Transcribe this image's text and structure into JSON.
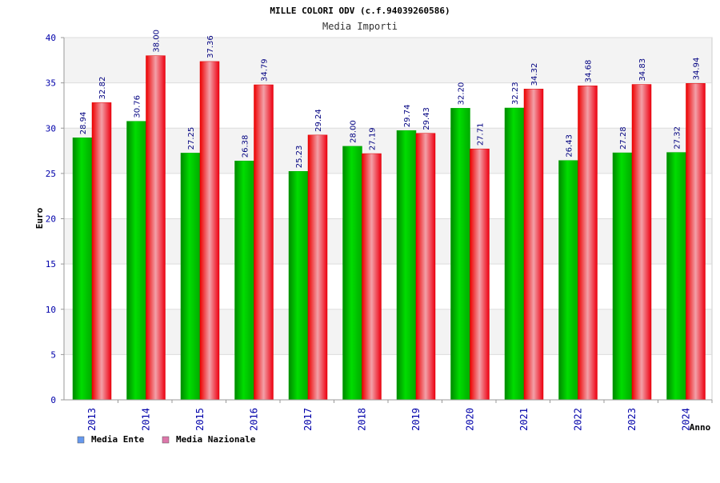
{
  "chart_data": {
    "type": "bar",
    "title": "MILLE COLORI ODV (c.f.94039260586)",
    "subtitle": "Media Importi",
    "ylabel": "Euro",
    "xlabel": "Anno",
    "ylim": [
      0,
      40
    ],
    "yticks": [
      0,
      5,
      10,
      15,
      20,
      25,
      30,
      35,
      40
    ],
    "categories": [
      "2013",
      "2014",
      "2015",
      "2016",
      "2017",
      "2018",
      "2019",
      "2020",
      "2021",
      "2022",
      "2023",
      "2024"
    ],
    "series": [
      {
        "name": "Media Ente",
        "color": "#00cc00",
        "legend_color": "#6699ee",
        "values": [
          28.94,
          30.76,
          27.25,
          26.38,
          25.23,
          28.0,
          29.74,
          32.2,
          32.23,
          26.43,
          27.28,
          27.32
        ],
        "labels": [
          "28.94",
          "30.76",
          "27.25",
          "26.38",
          "25.23",
          "28.00",
          "29.74",
          "32.20",
          "32.23",
          "26.43",
          "27.28",
          "27.32"
        ]
      },
      {
        "name": "Media Nazionale",
        "color": "#ee1111",
        "legend_color": "#dd77aa",
        "values": [
          32.82,
          38.0,
          37.36,
          34.79,
          29.24,
          27.19,
          29.43,
          27.71,
          34.32,
          34.68,
          34.83,
          34.94
        ],
        "labels": [
          "32.82",
          "38.00",
          "37.36",
          "34.79",
          "29.24",
          "27.19",
          "29.43",
          "27.71",
          "34.32",
          "34.68",
          "34.83",
          "34.94"
        ]
      }
    ],
    "grid": true,
    "legend": "bottom-left"
  }
}
